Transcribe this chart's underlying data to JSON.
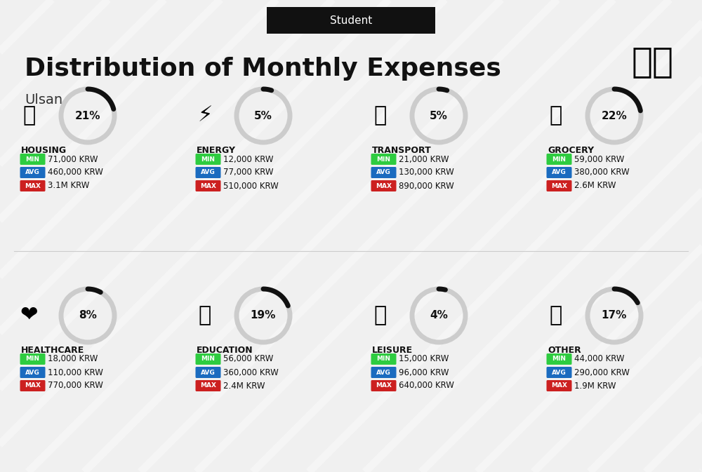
{
  "title": "Distribution of Monthly Expenses",
  "subtitle": "Student",
  "city": "Ulsan",
  "bg_color": "#f0f0f0",
  "categories": [
    {
      "name": "HOUSING",
      "pct": 21,
      "min": "71,000 KRW",
      "avg": "460,000 KRW",
      "max": "3.1M KRW",
      "emoji": "🏢",
      "row": 0,
      "col": 0
    },
    {
      "name": "ENERGY",
      "pct": 5,
      "min": "12,000 KRW",
      "avg": "77,000 KRW",
      "max": "510,000 KRW",
      "emoji": "⚡",
      "row": 0,
      "col": 1
    },
    {
      "name": "TRANSPORT",
      "pct": 5,
      "min": "21,000 KRW",
      "avg": "130,000 KRW",
      "max": "890,000 KRW",
      "emoji": "🚌",
      "row": 0,
      "col": 2
    },
    {
      "name": "GROCERY",
      "pct": 22,
      "min": "59,000 KRW",
      "avg": "380,000 KRW",
      "max": "2.6M KRW",
      "emoji": "🛒",
      "row": 0,
      "col": 3
    },
    {
      "name": "HEALTHCARE",
      "pct": 8,
      "min": "18,000 KRW",
      "avg": "110,000 KRW",
      "max": "770,000 KRW",
      "emoji": "❤️",
      "row": 1,
      "col": 0
    },
    {
      "name": "EDUCATION",
      "pct": 19,
      "min": "56,000 KRW",
      "avg": "360,000 KRW",
      "max": "2.4M KRW",
      "emoji": "🎓",
      "row": 1,
      "col": 1
    },
    {
      "name": "LEISURE",
      "pct": 4,
      "min": "15,000 KRW",
      "avg": "96,000 KRW",
      "max": "640,000 KRW",
      "emoji": "🛍️",
      "row": 1,
      "col": 2
    },
    {
      "name": "OTHER",
      "pct": 17,
      "min": "44,000 KRW",
      "avg": "290,000 KRW",
      "max": "1.9M KRW",
      "emoji": "💰",
      "row": 1,
      "col": 3
    }
  ],
  "color_min": "#2ecc40",
  "color_avg": "#1a6bbf",
  "color_max": "#cc2020",
  "arc_color_filled": "#222222",
  "arc_color_empty": "#cccccc"
}
